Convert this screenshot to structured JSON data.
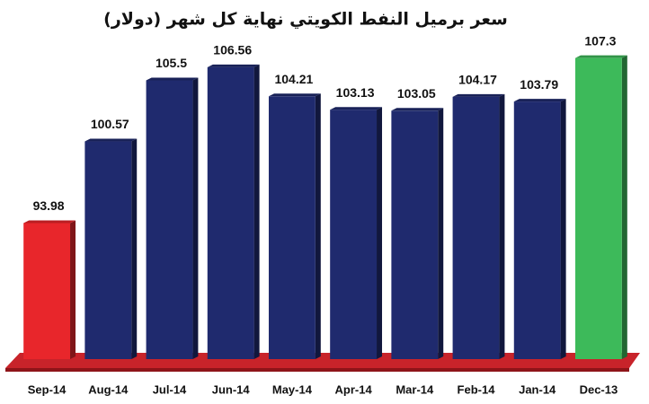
{
  "chart_data": {
    "type": "bar",
    "title": "سعر برميل النفط الكويتي نهاية كل شهر (دولار)",
    "categories": [
      "Sep-14",
      "Aug-14",
      "Jul-14",
      "Jun-14",
      "May-14",
      "Apr-14",
      "Mar-14",
      "Feb-14",
      "Jan-14",
      "Dec-13"
    ],
    "values": [
      93.98,
      100.57,
      105.5,
      106.56,
      104.21,
      103.13,
      103.05,
      104.17,
      103.79,
      107.3
    ],
    "colors": [
      "#e8262b",
      "#1f2a6e",
      "#1f2a6e",
      "#1f2a6e",
      "#1f2a6e",
      "#1f2a6e",
      "#1f2a6e",
      "#1f2a6e",
      "#1f2a6e",
      "#3dba5a"
    ],
    "ylim": [
      83,
      108
    ]
  }
}
